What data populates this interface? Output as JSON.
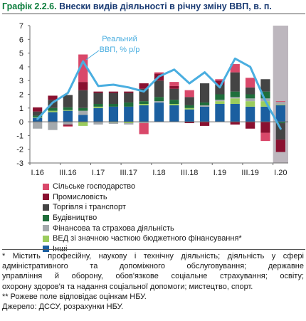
{
  "header": {
    "number": "Графік 2.2.6.",
    "title": "Внески видів діяльності в річну зміну ВВП, в. п."
  },
  "colors": {
    "Сільське господарство": "#d9486a",
    "Промисловість": "#8a1030",
    "Торгівля і транспорт": "#444444",
    "Будівництво": "#1f6e3b",
    "Фінансова та страхова діяльність": "#a4a9ad",
    "ВЕД зі значною часткою бюджетного фінансування*": "#9bcc5e",
    "Інші": "#1b5fa0",
    "line": "#4aaee0",
    "forecast_shade": "#bdb7be"
  },
  "chart_data": {
    "type": "bar",
    "stacked": true,
    "ylim": [
      -3,
      7
    ],
    "yticks": [
      -3,
      -2,
      -1,
      0,
      1,
      2,
      3,
      4,
      5,
      6,
      7
    ],
    "categories": [
      "I.16",
      "II.16",
      "III.16",
      "IV.16",
      "I.17",
      "II.17",
      "III.17",
      "IV.17",
      "I.18",
      "II.18",
      "III.18",
      "IV.18",
      "I.19",
      "II.19",
      "III.19",
      "IV.19",
      "I.20"
    ],
    "tick_labels": [
      "I.16",
      "III.16",
      "I.17",
      "III.17",
      "I.18",
      "III.18",
      "I.19",
      "III.19",
      "I.20"
    ],
    "shaded_categories": [
      "I.20"
    ],
    "series": [
      {
        "name": "Інші",
        "values": [
          0.3,
          0.7,
          0.8,
          0.5,
          1.0,
          1.1,
          1.1,
          1.2,
          1.4,
          1.2,
          0.9,
          1.1,
          1.3,
          1.3,
          1.1,
          1.1,
          1.2
        ]
      },
      {
        "name": "ВЕД зі значною часткою бюджетного фінансування*",
        "values": [
          0.05,
          0.1,
          0.05,
          -0.3,
          0.1,
          -0.05,
          -0.1,
          0.1,
          0.0,
          0.1,
          0.1,
          0.0,
          0.2,
          0.4,
          0.4,
          0.4,
          0.05
        ]
      },
      {
        "name": "Фінансова та страхова діяльність",
        "values": [
          -0.5,
          -0.6,
          -0.2,
          0.3,
          -0.2,
          -0.1,
          -0.1,
          -0.1,
          0.1,
          0.0,
          0.0,
          0.1,
          0.1,
          0.1,
          0.2,
          0.2,
          0.2
        ]
      },
      {
        "name": "Будівництво",
        "values": [
          0.1,
          0.2,
          0.2,
          0.2,
          0.2,
          0.2,
          0.3,
          0.2,
          0.3,
          0.3,
          0.2,
          0.2,
          0.4,
          0.4,
          0.3,
          0.5,
          -0.1
        ]
      },
      {
        "name": "Торгівля і транспорт",
        "values": [
          0.3,
          0.6,
          0.9,
          1.3,
          0.8,
          0.8,
          0.7,
          0.9,
          1.2,
          0.8,
          0.6,
          1.4,
          0.7,
          1.4,
          0.5,
          0.9,
          -1.2
        ]
      },
      {
        "name": "Промисловість",
        "values": [
          0.3,
          0.3,
          -0.1,
          0.6,
          0.1,
          0.1,
          0.1,
          0.4,
          0.5,
          0.2,
          -0.1,
          -0.3,
          0.3,
          -0.2,
          -0.5,
          -0.8,
          -0.9
        ]
      },
      {
        "name": "Сільське господарство",
        "values": [
          0.0,
          0.0,
          -0.05,
          2.0,
          0.0,
          0.0,
          0.0,
          -0.8,
          0.1,
          0.3,
          0.5,
          0.0,
          0.1,
          0.6,
          0.7,
          -0.6,
          0.05
        ]
      }
    ],
    "line": {
      "name": "Реальний ВВП, % р/р",
      "label": [
        "Реальний",
        "ВВП, % р/р"
      ],
      "values": [
        0.2,
        1.4,
        2.1,
        4.4,
        2.6,
        2.7,
        2.5,
        2.2,
        3.3,
        3.8,
        2.8,
        3.6,
        2.5,
        4.6,
        4.0,
        1.5,
        -0.5
      ]
    }
  },
  "legend": [
    "Сільське господарство",
    "Промисловість",
    "Торгівля  і транспорт",
    "Будівництво",
    "Фінансова та страхова діяльність",
    "ВЕД зі значною часткою бюджетного фінансування*",
    "Інші"
  ],
  "notes": {
    "asterisk": "* Містить професійну, наукову і технічну діяльність; діяльність у сфері",
    "asterisk_lines": [
      "адміністративного та допоміжного обслуговування; державне",
      "управління й оборону, обов'язкове соціальне страхування; освіту;"
    ],
    "asterisk_last": "охорону здоров'я та надання соціальної допомоги; мистецтво, спорт.",
    "forecast": "** Рожеве поле відповідає оцінкам НБУ.",
    "source": "Джерело: ДССУ, розрахунки НБУ."
  }
}
